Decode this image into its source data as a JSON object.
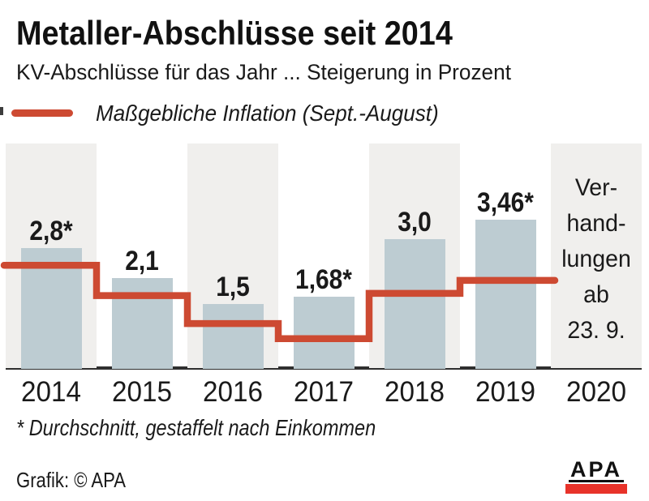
{
  "chart_data": {
    "type": "bar",
    "title": "Metaller-Abschlüsse seit 2014",
    "subtitle": "KV-Abschlüsse für das Jahr ... Steigerung in Prozent",
    "categories": [
      "2014",
      "2015",
      "2016",
      "2017",
      "2018",
      "2019",
      "2020"
    ],
    "series": [
      {
        "name": "KV-Abschluss Steigerung in Prozent",
        "type": "bar",
        "values": [
          2.8,
          2.1,
          1.5,
          1.68,
          3.0,
          3.46,
          null
        ],
        "value_labels": [
          "2,8*",
          "2,1",
          "1,5",
          "1,68*",
          "3,0",
          "3,46*",
          ""
        ]
      },
      {
        "name": "Maßgebliche Inflation (Sept.-August)",
        "type": "step-line",
        "values": [
          2.4,
          1.7,
          1.05,
          0.7,
          1.75,
          2.05,
          null
        ],
        "estimated": true
      }
    ],
    "annotation": {
      "category": "2020",
      "lines": [
        "Ver-",
        "hand-",
        "lungen",
        "ab",
        "23. 9."
      ]
    },
    "ylim": [
      0,
      5.2
    ],
    "grid": false,
    "legend_position": "top-left",
    "colors": {
      "bar": "#bdccd2",
      "line": "#cd4a32",
      "column_bg": "#f0efed",
      "baseline": "#2f2f2f",
      "text": "#1a1a1a",
      "logo_red": "#e8332a"
    }
  },
  "footnote": "* Durchschnitt, gestaffelt nach Einkommen",
  "footer": {
    "credit": "Grafik: © APA",
    "logo_text": "APA"
  }
}
